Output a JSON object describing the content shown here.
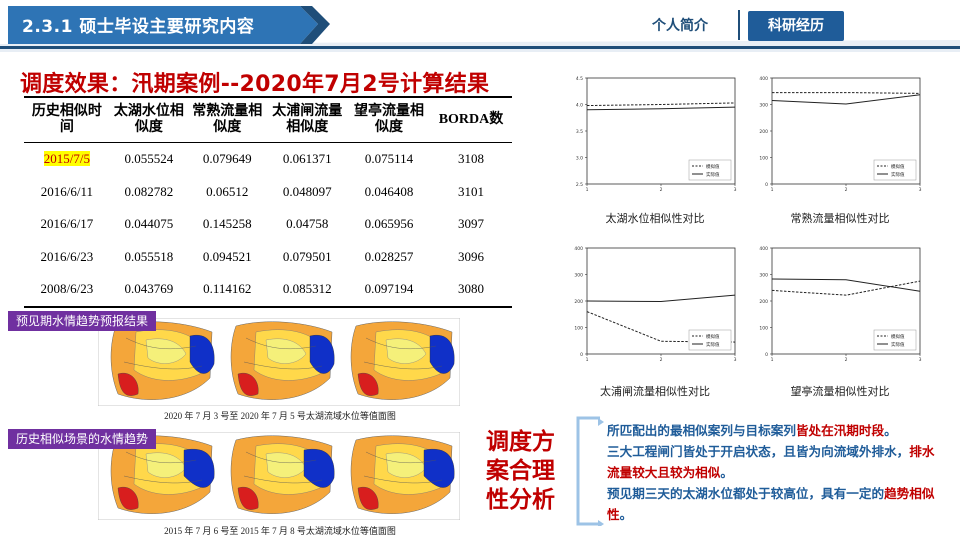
{
  "header": {
    "section_title": "2.3.1 硕士毕设主要研究内容",
    "tabs": [
      {
        "label": "个人简介",
        "active": false
      },
      {
        "label": "科研经历",
        "active": true
      }
    ],
    "colors": {
      "bar": "#2E74B5",
      "dark_bar": "#1F4E79",
      "active_tab": "#1F5C99"
    }
  },
  "main_heading": "调度效果：汛期案例--2020年7月2号计算结果",
  "table": {
    "headers": [
      "历史相似时间",
      "太湖水位相似度",
      "常熟流量相似度",
      "太浦闸流量相似度",
      "望亭流量相似度",
      "BORDA数"
    ],
    "rows": [
      [
        "2015/7/5",
        "0.055524",
        "0.079649",
        "0.061371",
        "0.075114",
        "3108"
      ],
      [
        "2016/6/11",
        "0.082782",
        "0.06512",
        "0.048097",
        "0.046408",
        "3101"
      ],
      [
        "2016/6/17",
        "0.044075",
        "0.145258",
        "0.04758",
        "0.065956",
        "3097"
      ],
      [
        "2016/6/23",
        "0.055518",
        "0.094521",
        "0.079501",
        "0.028257",
        "3096"
      ],
      [
        "2008/6/23",
        "0.043769",
        "0.114162",
        "0.085312",
        "0.097194",
        "3080"
      ]
    ]
  },
  "maps": {
    "forecast_label": "预见期水情趋势预报结果",
    "forecast_caption": "2020 年 7 月 3 号至 2020 年 7 月 5 号太湖流域水位等值面图",
    "history_label": "历史相似场景的水情趋势",
    "history_caption": "2015 年 7 月 6 号至 2015 年 7 月 8 号太湖流域水位等值面图"
  },
  "chart_data": [
    {
      "type": "line",
      "title": "太湖水位相似性对比",
      "x": [
        1,
        2,
        3
      ],
      "ylim": [
        2.5,
        4.5
      ],
      "yticks": [
        "2.5",
        "3.0",
        "3.5",
        "4.0",
        "4.5"
      ],
      "series": [
        {
          "name": "模拟值",
          "style": "dashed",
          "values": [
            3.98,
            4.0,
            4.03
          ]
        },
        {
          "name": "实际值",
          "style": "solid",
          "values": [
            3.9,
            3.92,
            3.95
          ]
        }
      ]
    },
    {
      "type": "line",
      "title": "常熟流量相似性对比",
      "x": [
        1,
        2,
        3
      ],
      "ylim": [
        0,
        400
      ],
      "yticks": [
        "0",
        "100",
        "200",
        "300",
        "400"
      ],
      "series": [
        {
          "name": "模拟值",
          "style": "dashed",
          "values": [
            345,
            345,
            342
          ]
        },
        {
          "name": "实际值",
          "style": "solid",
          "values": [
            315,
            302,
            337
          ]
        }
      ]
    },
    {
      "type": "line",
      "title": "太浦闸流量相似性对比",
      "x": [
        1,
        2,
        3
      ],
      "ylim": [
        0,
        400
      ],
      "yticks": [
        "0",
        "100",
        "200",
        "300",
        "400"
      ],
      "series": [
        {
          "name": "模拟值",
          "style": "dashed",
          "values": [
            160,
            48,
            45
          ]
        },
        {
          "name": "实际值",
          "style": "solid",
          "values": [
            200,
            198,
            222
          ]
        }
      ]
    },
    {
      "type": "line",
      "title": "望亭流量相似性对比",
      "x": [
        1,
        2,
        3
      ],
      "ylim": [
        0,
        400
      ],
      "yticks": [
        "0",
        "100",
        "200",
        "300",
        "400"
      ],
      "series": [
        {
          "name": "模拟值",
          "style": "dashed",
          "values": [
            240,
            222,
            275
          ]
        },
        {
          "name": "实际值",
          "style": "solid",
          "values": [
            283,
            280,
            237
          ]
        }
      ]
    }
  ],
  "analysis": {
    "heading": "调度方案合理性分析",
    "p1_a": "所匹配出的最相似案列与目标案列",
    "p1_b": "皆处在汛期时段",
    "p1_c": "。",
    "p2_a": "三大工程闸门皆处于开启状态，且皆为向流域外排水，",
    "p2_b": "排水流量较大且较为相似",
    "p2_c": "。",
    "p3_a": "预见期三天的太湖水位都处于较高位，具有一定的",
    "p3_b": "趋势相似性",
    "p3_c": "。"
  }
}
